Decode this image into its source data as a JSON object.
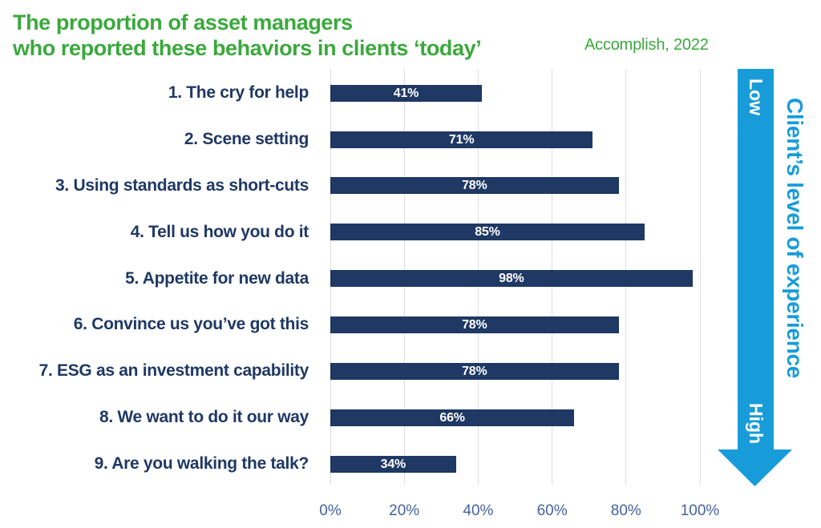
{
  "header": {
    "title_line1": "The proportion of asset managers",
    "title_line2": "who reported these behaviors in clients ‘today’",
    "source": "Accomplish, 2022"
  },
  "chart_data": {
    "type": "bar",
    "orientation": "horizontal",
    "title": "The proportion of asset managers who reported these behaviors in clients ‘today’",
    "categories": [
      "1. The cry for help",
      "2. Scene setting",
      "3. Using standards as short-cuts",
      "4. Tell us how you do it",
      "5. Appetite for new data",
      "6. Convince us you’ve got this",
      "7. ESG as an investment capability",
      "8. We want to do it our way",
      "9. Are you walking the talk?"
    ],
    "values": [
      41,
      71,
      78,
      85,
      98,
      78,
      78,
      66,
      34
    ],
    "value_labels": [
      "41%",
      "71%",
      "78%",
      "85%",
      "98%",
      "78%",
      "78%",
      "66%",
      "34%"
    ],
    "x_ticks": [
      "0%",
      "20%",
      "40%",
      "60%",
      "80%",
      "100%"
    ],
    "x_tick_values": [
      0,
      20,
      40,
      60,
      80,
      100
    ],
    "xlim": [
      0,
      100
    ],
    "grid": true,
    "legend": "none"
  },
  "experience_arrow": {
    "top_label": "Low",
    "bottom_label": "High",
    "side_label": "Client’s level of experience"
  },
  "colors": {
    "title_green": "#3AA93C",
    "bar_navy": "#1F3864",
    "category_navy": "#1F3864",
    "axis_label_blue": "#44639E",
    "gridline_gray": "#DCDCDC",
    "arrow_cyan": "#189CD9",
    "value_label_white": "#FFFFFF"
  }
}
